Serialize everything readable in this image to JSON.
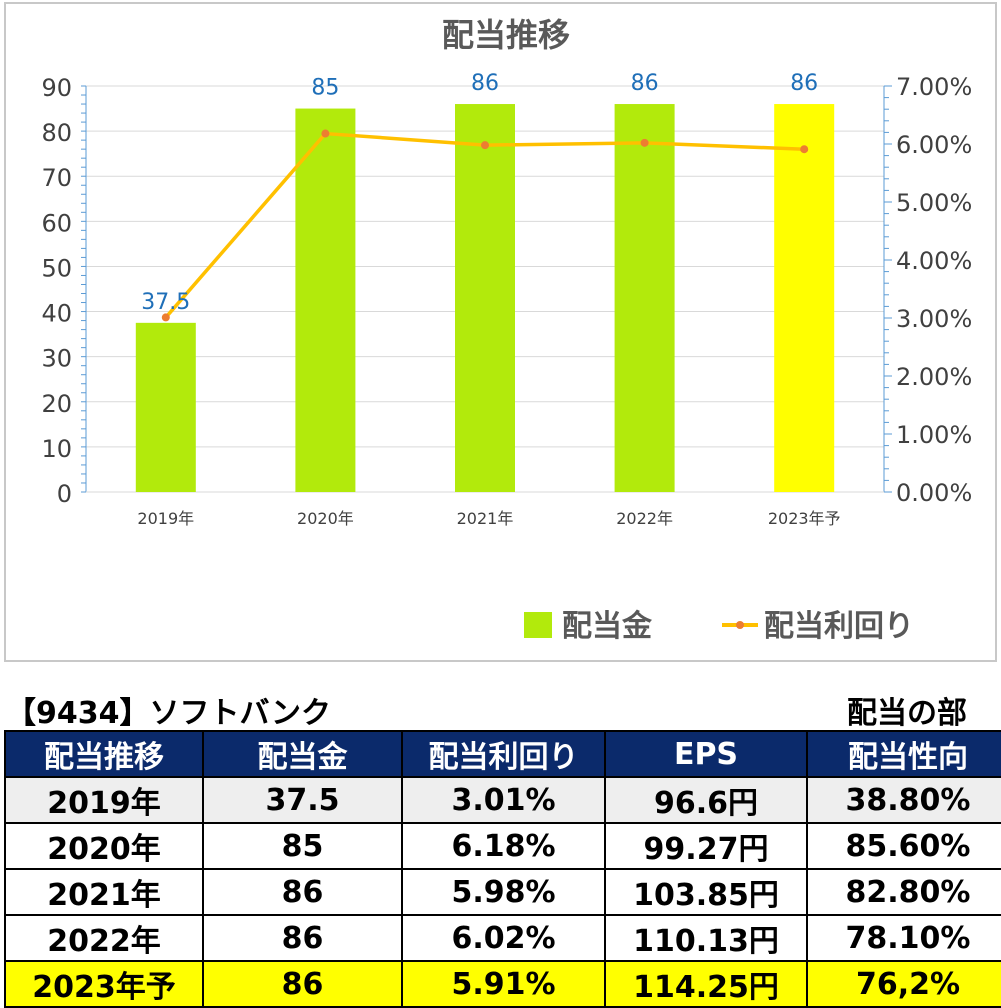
{
  "chart_data": {
    "type": "bar+line",
    "title": "配当推移",
    "categories": [
      "2019年",
      "2020年",
      "2021年",
      "2022年",
      "2023年予"
    ],
    "series": [
      {
        "name": "配当金",
        "type": "bar",
        "axis": "left",
        "values": [
          37.5,
          85,
          86,
          86,
          86
        ],
        "data_labels": [
          "37.5",
          "85",
          "86",
          "86",
          "86"
        ],
        "colors": [
          "#b2ea0c",
          "#b2ea0c",
          "#b2ea0c",
          "#b2ea0c",
          "#ffff00"
        ]
      },
      {
        "name": "配当利回り",
        "type": "line",
        "axis": "right",
        "values": [
          3.01,
          6.18,
          5.98,
          6.02,
          5.91
        ],
        "color": "#ffc000",
        "marker_color": "#ed7d31"
      }
    ],
    "y_left": {
      "range": [
        0,
        90
      ],
      "ticks": [
        "0",
        "10",
        "20",
        "30",
        "40",
        "50",
        "60",
        "70",
        "80",
        "90"
      ]
    },
    "y_right": {
      "range": [
        0,
        7
      ],
      "ticks": [
        "0.00%",
        "1.00%",
        "2.00%",
        "3.00%",
        "4.00%",
        "5.00%",
        "6.00%",
        "7.00%"
      ]
    },
    "grid": true,
    "legend_position": "bottom-right"
  },
  "stock_title": "【9434】ソフトバンク",
  "section_label": "配当の部",
  "table": {
    "headers": [
      "配当推移",
      "配当金",
      "配当利回り",
      "EPS",
      "配当性向"
    ],
    "rows": [
      [
        "2019年",
        "37.5",
        "3.01%",
        "96.6円",
        "38.80%"
      ],
      [
        "2020年",
        "85",
        "6.18%",
        "99.27円",
        "85.60%"
      ],
      [
        "2021年",
        "86",
        "5.98%",
        "103.85円",
        "82.80%"
      ],
      [
        "2022年",
        "86",
        "6.02%",
        "110.13円",
        "78.10%"
      ],
      [
        "2023年予",
        "86",
        "5.91%",
        "114.25円",
        "76,2%"
      ]
    ]
  }
}
